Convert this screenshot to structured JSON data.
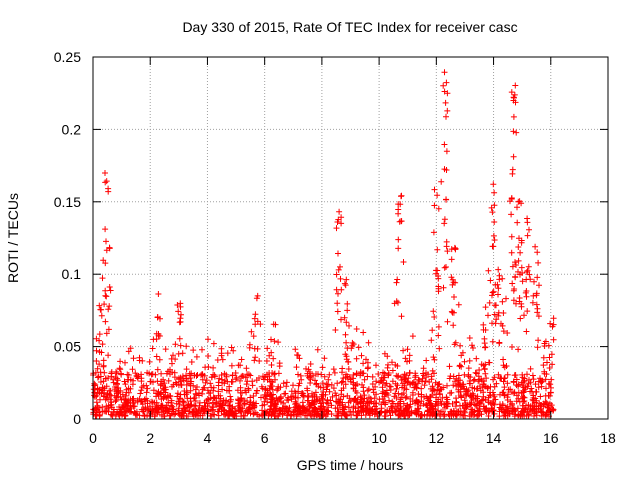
{
  "chart_data": {
    "type": "scatter",
    "title": "Day 330 of 2015, Rate Of TEC Index for receiver casc",
    "xlabel": "GPS time / hours",
    "ylabel": "ROTI / TECUs",
    "xlim": [
      0,
      18
    ],
    "ylim": [
      0,
      0.25
    ],
    "xticks": [
      0,
      2,
      4,
      6,
      8,
      10,
      12,
      14,
      16,
      18
    ],
    "yticks": [
      0,
      0.05,
      0.1,
      0.15,
      0.2,
      0.25
    ],
    "ytick_labels": [
      "0",
      "0.05",
      "0.1",
      "0.15",
      "0.2",
      "0.25"
    ],
    "grid": true,
    "marker": "+",
    "color": "#ff0000",
    "data_extent_x": [
      0,
      16.1
    ],
    "envelope": [
      [
        0.0,
        0.035
      ],
      [
        0.2,
        0.06
      ],
      [
        0.3,
        0.08
      ],
      [
        0.5,
        0.17
      ],
      [
        0.7,
        0.045
      ],
      [
        1.0,
        0.035
      ],
      [
        1.3,
        0.045
      ],
      [
        1.7,
        0.04
      ],
      [
        2.0,
        0.04
      ],
      [
        2.3,
        0.085
      ],
      [
        2.5,
        0.045
      ],
      [
        2.8,
        0.06
      ],
      [
        3.0,
        0.085
      ],
      [
        3.3,
        0.04
      ],
      [
        3.6,
        0.045
      ],
      [
        4.0,
        0.05
      ],
      [
        4.3,
        0.055
      ],
      [
        4.6,
        0.05
      ],
      [
        5.0,
        0.045
      ],
      [
        5.3,
        0.035
      ],
      [
        5.7,
        0.085
      ],
      [
        6.0,
        0.045
      ],
      [
        6.3,
        0.07
      ],
      [
        6.6,
        0.035
      ],
      [
        7.0,
        0.055
      ],
      [
        7.4,
        0.035
      ],
      [
        7.8,
        0.045
      ],
      [
        8.2,
        0.035
      ],
      [
        8.6,
        0.15
      ],
      [
        8.8,
        0.1
      ],
      [
        9.0,
        0.06
      ],
      [
        9.5,
        0.055
      ],
      [
        10.0,
        0.045
      ],
      [
        10.4,
        0.045
      ],
      [
        10.7,
        0.155
      ],
      [
        11.0,
        0.06
      ],
      [
        11.4,
        0.045
      ],
      [
        11.8,
        0.055
      ],
      [
        12.0,
        0.16
      ],
      [
        12.3,
        0.245
      ],
      [
        12.6,
        0.13
      ],
      [
        12.9,
        0.05
      ],
      [
        13.3,
        0.055
      ],
      [
        13.7,
        0.065
      ],
      [
        14.0,
        0.165
      ],
      [
        14.2,
        0.11
      ],
      [
        14.4,
        0.09
      ],
      [
        14.7,
        0.237
      ],
      [
        14.9,
        0.165
      ],
      [
        15.2,
        0.14
      ],
      [
        15.5,
        0.12
      ],
      [
        15.8,
        0.07
      ],
      [
        16.1,
        0.07
      ]
    ]
  }
}
